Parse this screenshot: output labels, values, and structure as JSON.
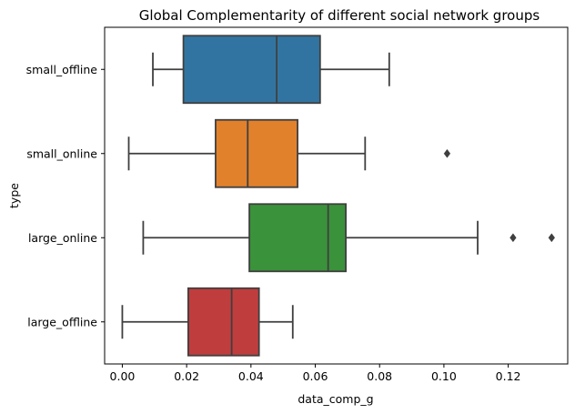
{
  "chart_data": {
    "type": "boxplot",
    "orientation": "horizontal",
    "title": "Global Complementarity of different social network groups",
    "xlabel": "data_comp_g",
    "ylabel": "type",
    "xlim": [
      -0.0055,
      0.1385
    ],
    "xticks": [
      "0.00",
      "0.02",
      "0.04",
      "0.06",
      "0.08",
      "0.10",
      "0.12"
    ],
    "categories": [
      "small_offline",
      "small_online",
      "large_online",
      "large_offline"
    ],
    "colors": [
      "#3274a1",
      "#e1812c",
      "#3a923a",
      "#c03d3e"
    ],
    "line_color": "#3f3f3f",
    "boxes": [
      {
        "whisker_low": 0.0095,
        "q1": 0.019,
        "median": 0.048,
        "q3": 0.0615,
        "whisker_high": 0.083,
        "outliers": []
      },
      {
        "whisker_low": 0.002,
        "q1": 0.029,
        "median": 0.039,
        "q3": 0.0545,
        "whisker_high": 0.0755,
        "outliers": [
          0.101
        ]
      },
      {
        "whisker_low": 0.0065,
        "q1": 0.0395,
        "median": 0.064,
        "q3": 0.0695,
        "whisker_high": 0.1105,
        "outliers": [
          0.1215,
          0.1335
        ]
      },
      {
        "whisker_low": 0.0,
        "q1": 0.0205,
        "median": 0.034,
        "q3": 0.0425,
        "whisker_high": 0.053,
        "outliers": []
      }
    ]
  }
}
